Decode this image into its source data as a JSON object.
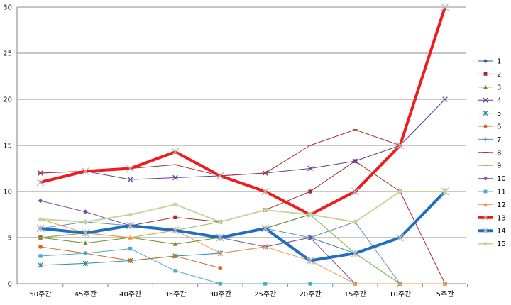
{
  "chart_data": {
    "type": "line",
    "title": "",
    "xlabel": "",
    "ylabel": "",
    "categories": [
      "50주간",
      "45주간",
      "40주간",
      "35주간",
      "30주간",
      "25주간",
      "20주간",
      "15주간",
      "10주간",
      "5주간"
    ],
    "ylim": [
      0,
      30
    ],
    "yticks": [
      0,
      5,
      10,
      15,
      20,
      25,
      30
    ],
    "grid": "horizontal",
    "legend": "right",
    "series": [
      {
        "name": "1",
        "color": "#1f5fa8",
        "marker": "diamond",
        "width": 1,
        "values": [
          5,
          5.5,
          6.3,
          5.8,
          5,
          6,
          7.5,
          null,
          null,
          null
        ]
      },
      {
        "name": "2",
        "color": "#a02c2c",
        "marker": "square",
        "width": 1,
        "values": [
          5,
          5.5,
          6.3,
          7.2,
          6.7,
          8,
          10,
          13.3,
          10,
          0
        ]
      },
      {
        "name": "3",
        "color": "#6b8e23",
        "marker": "triangle",
        "width": 1,
        "values": [
          5,
          4.4,
          5,
          4.3,
          5,
          6,
          7.5,
          3.3,
          0,
          null
        ]
      },
      {
        "name": "4",
        "color": "#5e3c99",
        "marker": "x",
        "width": 1,
        "values": [
          12,
          12.2,
          11.3,
          11.5,
          11.7,
          12,
          12.5,
          13.3,
          15,
          20
        ]
      },
      {
        "name": "5",
        "color": "#2a8ca0",
        "marker": "star",
        "width": 1,
        "values": [
          2,
          2.2,
          2.5,
          3,
          3.3,
          4,
          5,
          3.3,
          0,
          null
        ]
      },
      {
        "name": "6",
        "color": "#d2691e",
        "marker": "circle",
        "width": 1,
        "values": [
          4,
          3.3,
          2.5,
          3,
          1.7,
          null,
          null,
          null,
          null,
          null
        ]
      },
      {
        "name": "7",
        "color": "#5b8fc7",
        "marker": "plus",
        "width": 1,
        "values": [
          6,
          6.7,
          6.3,
          5.8,
          5,
          6,
          5,
          6.7,
          0,
          null
        ]
      },
      {
        "name": "8",
        "color": "#b03030",
        "marker": "dash",
        "width": 1,
        "values": [
          12,
          12.2,
          12.5,
          12.9,
          11.7,
          12,
          15,
          16.7,
          15,
          null
        ]
      },
      {
        "name": "9",
        "color": "#9cbb59",
        "marker": "dash",
        "width": 1,
        "values": [
          5,
          5.5,
          5,
          5.8,
          6.7,
          8,
          7.5,
          3.3,
          0,
          null
        ]
      },
      {
        "name": "10",
        "color": "#7e4e9e",
        "marker": "diamond",
        "width": 1,
        "values": [
          9,
          7.8,
          6.3,
          5.8,
          5,
          4,
          5,
          0,
          null,
          null
        ]
      },
      {
        "name": "11",
        "color": "#4bacc6",
        "marker": "square",
        "width": 1,
        "values": [
          3,
          3.3,
          3.8,
          1.4,
          0,
          0,
          0,
          0,
          0,
          0
        ]
      },
      {
        "name": "12",
        "color": "#f79646",
        "marker": "triangle",
        "width": 1,
        "values": [
          7,
          5.5,
          5,
          5.8,
          3.3,
          4,
          2.5,
          0,
          0,
          0
        ]
      },
      {
        "name": "13",
        "color": "#ee1c1c",
        "marker": "x",
        "width": 4,
        "values": [
          11,
          12.2,
          12.5,
          14.3,
          11.7,
          10,
          7.5,
          10,
          15,
          30
        ]
      },
      {
        "name": "14",
        "color": "#1f6fc0",
        "marker": "star",
        "width": 4,
        "values": [
          6,
          5.5,
          6.3,
          5.8,
          5,
          6,
          2.5,
          3.3,
          5,
          10
        ]
      },
      {
        "name": "15",
        "color": "#c4d79b",
        "marker": "circle",
        "width": 2,
        "values": [
          7,
          6.7,
          7.5,
          8.6,
          6.7,
          8,
          7.5,
          6.7,
          10,
          10
        ]
      }
    ]
  }
}
